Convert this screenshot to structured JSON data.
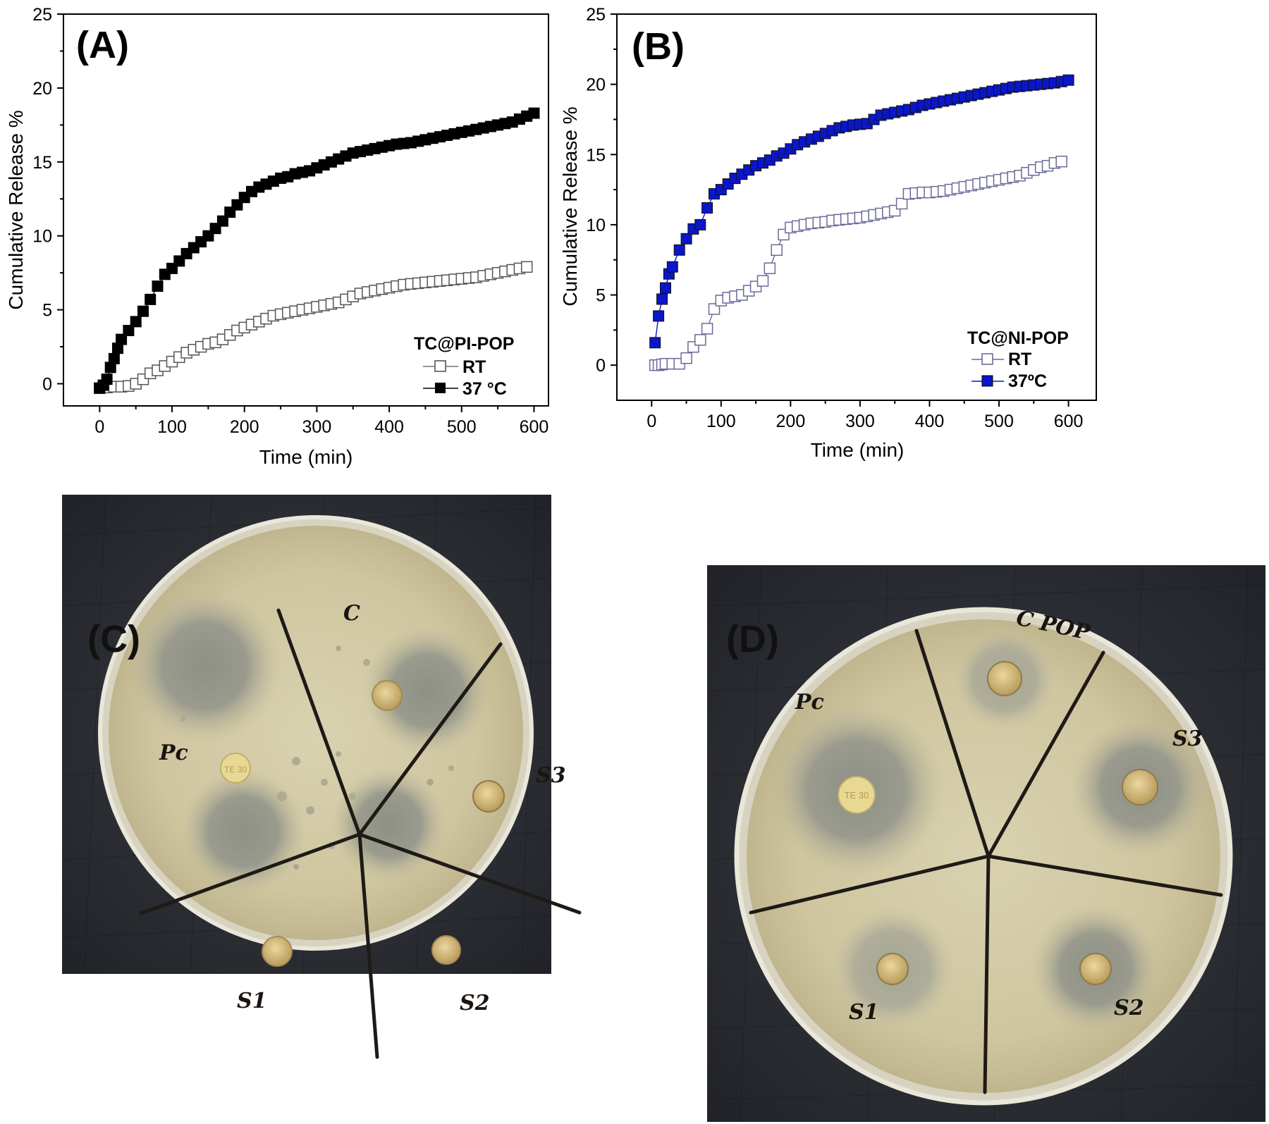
{
  "chart_data": [
    {
      "panel": "(A)",
      "type": "scatter",
      "xlabel": "Time (min)",
      "ylabel": "Cumulative Release %",
      "xlim": [
        -50,
        620
      ],
      "ylim": [
        -1.5,
        25
      ],
      "xticks": [
        0,
        100,
        200,
        300,
        400,
        500,
        600
      ],
      "yticks": [
        0,
        5,
        10,
        15,
        20,
        25
      ],
      "legend": {
        "title": "TC@PI-POP",
        "position": "bottom-right"
      },
      "series": [
        {
          "name": "RT",
          "marker": "open-square",
          "color": "#555555",
          "x": [
            0,
            10,
            20,
            30,
            40,
            50,
            60,
            70,
            80,
            90,
            100,
            110,
            120,
            130,
            140,
            150,
            160,
            170,
            180,
            190,
            200,
            210,
            220,
            230,
            240,
            250,
            260,
            270,
            280,
            290,
            300,
            310,
            320,
            330,
            340,
            350,
            360,
            370,
            380,
            390,
            400,
            410,
            420,
            430,
            440,
            450,
            460,
            470,
            480,
            490,
            500,
            510,
            520,
            530,
            540,
            550,
            560,
            570,
            580,
            590
          ],
          "y": [
            -0.3,
            -0.25,
            -0.2,
            -0.2,
            -0.15,
            0.0,
            0.3,
            0.7,
            0.9,
            1.2,
            1.5,
            1.8,
            2.1,
            2.3,
            2.5,
            2.7,
            2.8,
            3.0,
            3.3,
            3.6,
            3.8,
            4.0,
            4.2,
            4.4,
            4.6,
            4.7,
            4.8,
            4.9,
            5.0,
            5.1,
            5.2,
            5.3,
            5.4,
            5.5,
            5.7,
            5.9,
            6.1,
            6.2,
            6.3,
            6.4,
            6.5,
            6.6,
            6.7,
            6.75,
            6.8,
            6.85,
            6.9,
            6.95,
            7.0,
            7.05,
            7.1,
            7.15,
            7.2,
            7.3,
            7.4,
            7.5,
            7.6,
            7.7,
            7.8,
            7.9
          ]
        },
        {
          "name": "37 °C",
          "marker": "filled-square",
          "color": "#000000",
          "x": [
            0,
            5,
            10,
            15,
            20,
            25,
            30,
            40,
            50,
            60,
            70,
            80,
            90,
            100,
            110,
            120,
            130,
            140,
            150,
            160,
            170,
            180,
            190,
            200,
            210,
            220,
            230,
            240,
            250,
            260,
            270,
            280,
            290,
            300,
            310,
            320,
            330,
            340,
            350,
            360,
            370,
            380,
            390,
            400,
            410,
            420,
            430,
            440,
            450,
            460,
            470,
            480,
            490,
            500,
            510,
            520,
            530,
            540,
            550,
            560,
            570,
            580,
            590,
            600
          ],
          "y": [
            -0.3,
            -0.1,
            0.3,
            1.1,
            1.7,
            2.4,
            3.0,
            3.6,
            4.2,
            4.9,
            5.7,
            6.6,
            7.4,
            7.8,
            8.3,
            8.8,
            9.2,
            9.6,
            10.0,
            10.5,
            11.0,
            11.6,
            12.1,
            12.6,
            13.0,
            13.3,
            13.5,
            13.7,
            13.9,
            14.0,
            14.2,
            14.3,
            14.4,
            14.6,
            14.8,
            15.0,
            15.2,
            15.4,
            15.6,
            15.7,
            15.8,
            15.9,
            16.0,
            16.1,
            16.2,
            16.25,
            16.3,
            16.4,
            16.5,
            16.6,
            16.7,
            16.8,
            16.9,
            17.0,
            17.1,
            17.2,
            17.3,
            17.4,
            17.5,
            17.6,
            17.7,
            17.9,
            18.1,
            18.3
          ]
        }
      ]
    },
    {
      "panel": "(B)",
      "type": "scatter",
      "xlabel": "Time (min)",
      "ylabel": "Cumulative Release %",
      "xlim": [
        -50,
        640
      ],
      "ylim": [
        -2.5,
        25
      ],
      "xticks": [
        0,
        100,
        200,
        300,
        400,
        500,
        600
      ],
      "yticks": [
        0,
        5,
        10,
        15,
        20,
        25
      ],
      "legend": {
        "title": "TC@NI-POP",
        "position": "bottom-right"
      },
      "series": [
        {
          "name": "RT",
          "marker": "open-square",
          "color": "#6a6a9a",
          "x": [
            5,
            10,
            15,
            20,
            30,
            40,
            50,
            60,
            70,
            80,
            90,
            100,
            110,
            120,
            130,
            140,
            150,
            160,
            170,
            180,
            190,
            200,
            210,
            220,
            230,
            240,
            250,
            260,
            270,
            280,
            290,
            300,
            310,
            320,
            330,
            340,
            350,
            360,
            370,
            380,
            390,
            400,
            410,
            420,
            430,
            440,
            450,
            460,
            470,
            480,
            490,
            500,
            510,
            520,
            530,
            540,
            550,
            560,
            570,
            580,
            590
          ],
          "y": [
            0.0,
            0.0,
            0.05,
            0.1,
            0.1,
            0.1,
            0.5,
            1.3,
            1.8,
            2.6,
            4.0,
            4.6,
            4.8,
            4.9,
            5.0,
            5.3,
            5.6,
            6.0,
            6.9,
            8.2,
            9.3,
            9.8,
            9.9,
            10.0,
            10.1,
            10.15,
            10.2,
            10.3,
            10.35,
            10.4,
            10.45,
            10.5,
            10.6,
            10.7,
            10.8,
            10.9,
            11.0,
            11.5,
            12.2,
            12.25,
            12.3,
            12.3,
            12.35,
            12.4,
            12.5,
            12.6,
            12.7,
            12.8,
            12.9,
            13.0,
            13.1,
            13.2,
            13.3,
            13.4,
            13.5,
            13.7,
            13.9,
            14.1,
            14.2,
            14.4,
            14.5
          ]
        },
        {
          "name": "37ºC",
          "marker": "filled-square",
          "color": "#0a16c8",
          "x": [
            5,
            10,
            15,
            20,
            25,
            30,
            40,
            50,
            60,
            70,
            80,
            90,
            100,
            110,
            120,
            130,
            140,
            150,
            160,
            170,
            180,
            190,
            200,
            210,
            220,
            230,
            240,
            250,
            260,
            270,
            280,
            290,
            300,
            310,
            320,
            330,
            340,
            350,
            360,
            370,
            380,
            390,
            400,
            410,
            420,
            430,
            440,
            450,
            460,
            470,
            480,
            490,
            500,
            510,
            520,
            530,
            540,
            550,
            560,
            570,
            580,
            590,
            600
          ],
          "y": [
            1.6,
            3.5,
            4.7,
            5.5,
            6.5,
            7.0,
            8.2,
            9.0,
            9.7,
            10.0,
            11.2,
            12.2,
            12.5,
            12.9,
            13.3,
            13.6,
            13.9,
            14.2,
            14.4,
            14.6,
            14.9,
            15.1,
            15.4,
            15.7,
            15.9,
            16.1,
            16.3,
            16.5,
            16.7,
            16.9,
            17.0,
            17.1,
            17.15,
            17.2,
            17.5,
            17.8,
            17.9,
            18.0,
            18.1,
            18.2,
            18.35,
            18.5,
            18.6,
            18.7,
            18.8,
            18.9,
            19.0,
            19.1,
            19.2,
            19.3,
            19.4,
            19.5,
            19.6,
            19.7,
            19.8,
            19.85,
            19.9,
            19.95,
            20.0,
            20.05,
            20.1,
            20.2,
            20.3
          ]
        }
      ]
    }
  ],
  "plates": {
    "c": {
      "letter": "(C)",
      "labels": {
        "top": "C",
        "left": "Pc",
        "right": "S3",
        "bottom_right": "S2",
        "bottom_left": "S1"
      },
      "disk_text": "TE 30"
    },
    "d": {
      "letter": "(D)",
      "labels": {
        "top": "C POP",
        "left": "Pc",
        "right": "S3",
        "bottom_right": "S2",
        "bottom_left": "S1"
      },
      "disk_text": "TE 30"
    }
  }
}
